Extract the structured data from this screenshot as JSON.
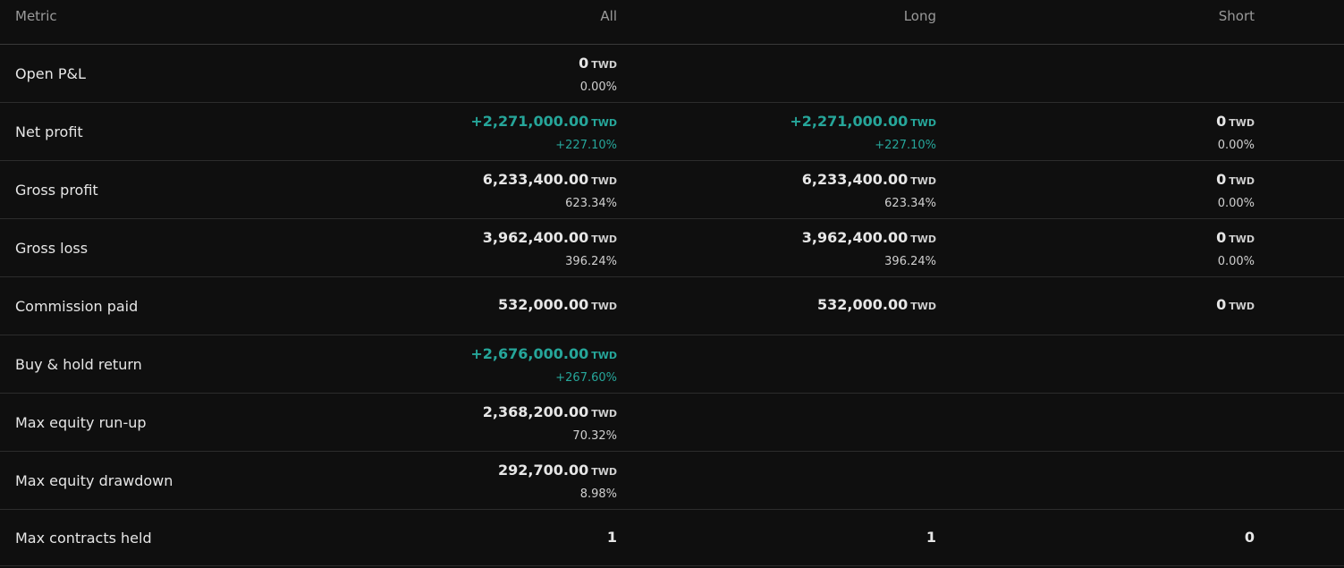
{
  "colors": {
    "background": "#0f0f0f",
    "positive": "#26a69a",
    "header_text": "#9a9a9a",
    "divider": "#2c2c2c"
  },
  "header": {
    "metric": "Metric",
    "all": "All",
    "long": "Long",
    "short": "Short"
  },
  "rows": [
    {
      "metric": "Open P&L",
      "all": {
        "value": "0",
        "unit": "TWD",
        "pct": "0.00%"
      },
      "long": null,
      "short": null
    },
    {
      "metric": "Net profit",
      "all": {
        "value": "+2,271,000.00",
        "unit": "TWD",
        "pct": "+227.10%",
        "positive": true
      },
      "long": {
        "value": "+2,271,000.00",
        "unit": "TWD",
        "pct": "+227.10%",
        "positive": true
      },
      "short": {
        "value": "0",
        "unit": "TWD",
        "pct": "0.00%"
      }
    },
    {
      "metric": "Gross profit",
      "all": {
        "value": "6,233,400.00",
        "unit": "TWD",
        "pct": "623.34%"
      },
      "long": {
        "value": "6,233,400.00",
        "unit": "TWD",
        "pct": "623.34%"
      },
      "short": {
        "value": "0",
        "unit": "TWD",
        "pct": "0.00%"
      }
    },
    {
      "metric": "Gross loss",
      "all": {
        "value": "3,962,400.00",
        "unit": "TWD",
        "pct": "396.24%"
      },
      "long": {
        "value": "3,962,400.00",
        "unit": "TWD",
        "pct": "396.24%"
      },
      "short": {
        "value": "0",
        "unit": "TWD",
        "pct": "0.00%"
      }
    },
    {
      "metric": "Commission paid",
      "all": {
        "value": "532,000.00",
        "unit": "TWD"
      },
      "long": {
        "value": "532,000.00",
        "unit": "TWD"
      },
      "short": {
        "value": "0",
        "unit": "TWD"
      }
    },
    {
      "metric": "Buy & hold return",
      "all": {
        "value": "+2,676,000.00",
        "unit": "TWD",
        "pct": "+267.60%",
        "positive": true
      },
      "long": null,
      "short": null
    },
    {
      "metric": "Max equity run-up",
      "all": {
        "value": "2,368,200.00",
        "unit": "TWD",
        "pct": "70.32%"
      },
      "long": null,
      "short": null
    },
    {
      "metric": "Max equity drawdown",
      "all": {
        "value": "292,700.00",
        "unit": "TWD",
        "pct": "8.98%"
      },
      "long": null,
      "short": null
    },
    {
      "metric": "Max contracts held",
      "all": {
        "value": "1"
      },
      "long": {
        "value": "1"
      },
      "short": {
        "value": "0"
      }
    }
  ]
}
